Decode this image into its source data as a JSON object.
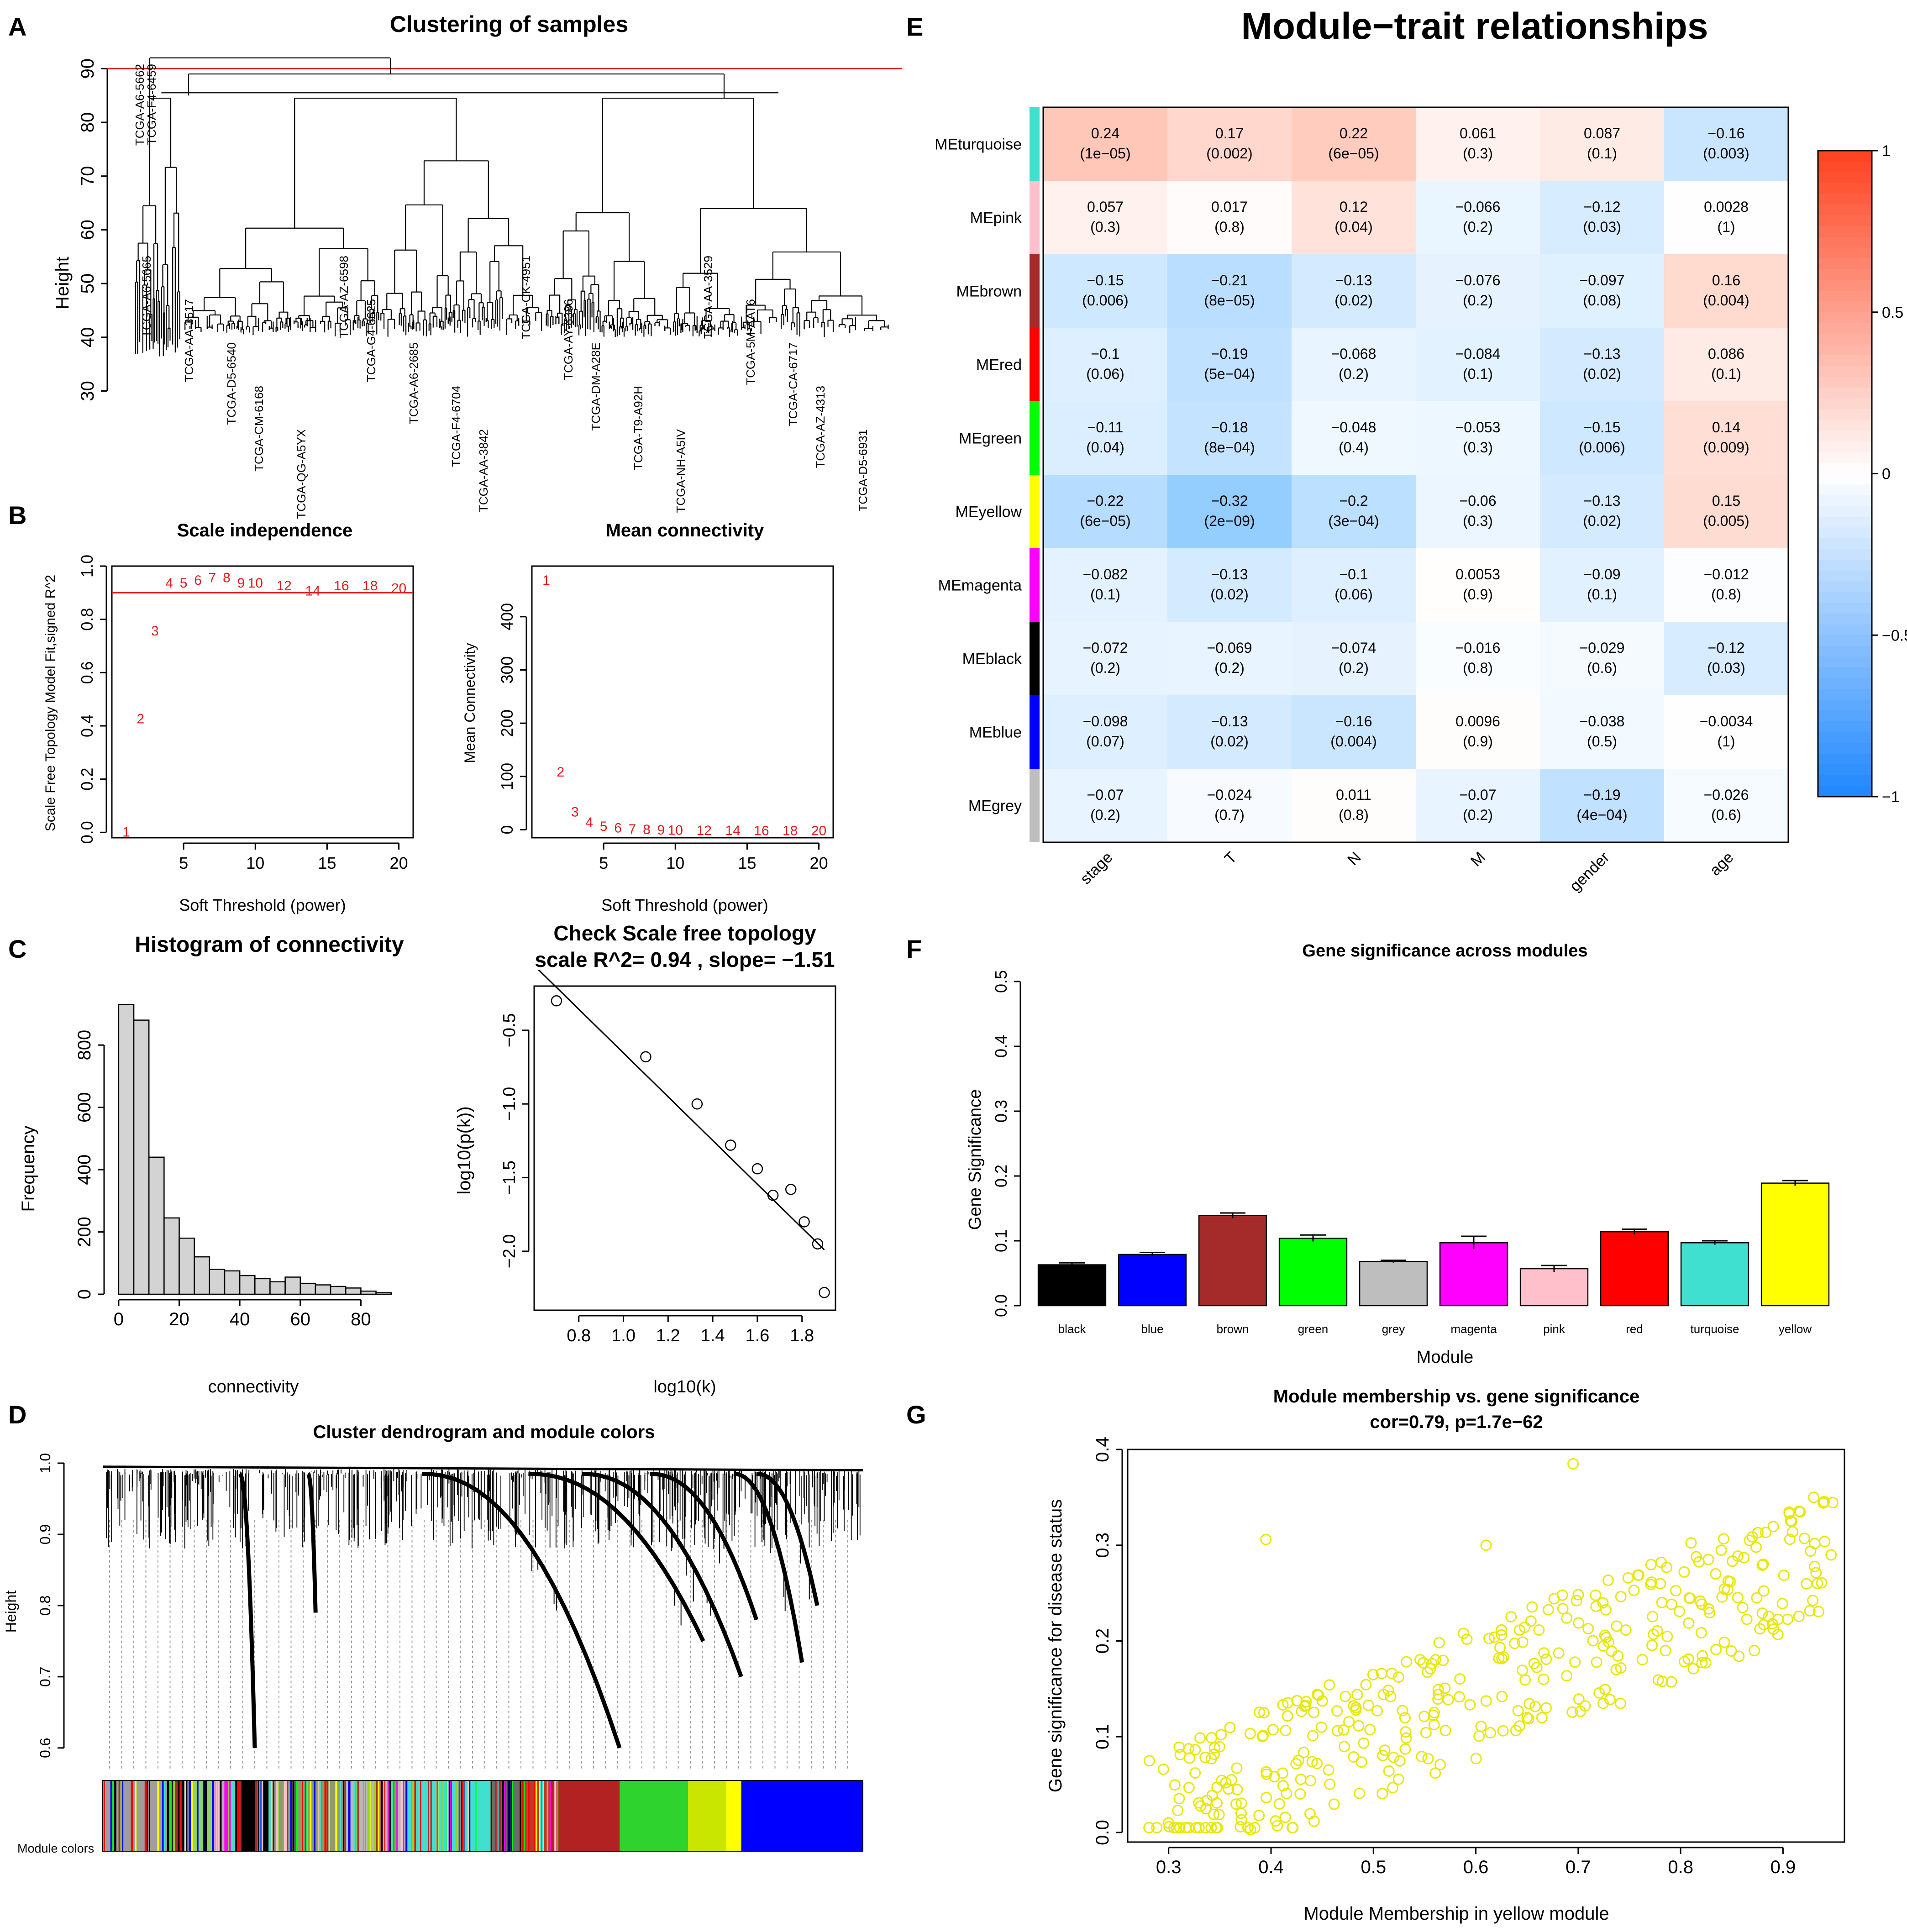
{
  "figure": {
    "panel_letters": [
      "A",
      "B",
      "C",
      "D",
      "E",
      "F",
      "G"
    ]
  },
  "chart_data": [
    {
      "panel": "A",
      "type": "dendrogram",
      "title": "Clustering of samples",
      "xlabel": "",
      "ylabel": "Height",
      "ylim": [
        28,
        93
      ],
      "yticks": [
        30,
        40,
        50,
        60,
        70,
        80,
        90
      ],
      "cut_height": 90,
      "cut_color": "#e41a1c",
      "sample_labels": [
        "TCGA-A6-5665",
        "TCGA-AA-3517",
        "TCGA-D5-6540",
        "TCGA-CM-6168",
        "TCGA-QG-A5YX",
        "TCGA-AZ-6598",
        "TCGA-G4-6625",
        "TCGA-A6-2685",
        "TCGA-F4-6704",
        "TCGA-AA-3842",
        "TCGA-CK-4951",
        "TCGA-AY-6386",
        "TCGA-DM-A28E",
        "TCGA-T9-A92H",
        "TCGA-NH-A5IV",
        "TCGA-AA-3529",
        "TCGA-5M-AAT6",
        "TCGA-CA-6717",
        "TCGA-AZ-4313",
        "TCGA-D5-6931"
      ],
      "outlier_labels": [
        "TCGA-A6-5662",
        "TCGA-F4-6459"
      ]
    },
    {
      "panel": "B1",
      "type": "scatter",
      "title": "Scale independence",
      "xlabel": "Soft Threshold (power)",
      "ylabel": "Scale Free Topology Model Fit,signed R^2",
      "xlim": [
        0,
        21
      ],
      "ylim": [
        -0.02,
        1.0
      ],
      "xticks": [
        5,
        10,
        15,
        20
      ],
      "yticks": [
        0.0,
        0.2,
        0.4,
        0.6,
        0.8,
        1.0
      ],
      "hline": 0.9,
      "labels": [
        "1",
        "2",
        "3",
        "4",
        "5",
        "6",
        "7",
        "8",
        "9",
        "10",
        "12",
        "14",
        "16",
        "18",
        "20"
      ],
      "x": [
        1,
        2,
        3,
        4,
        5,
        6,
        7,
        8,
        9,
        10,
        12,
        14,
        16,
        18,
        20
      ],
      "y": [
        0.005,
        0.43,
        0.76,
        0.94,
        0.94,
        0.95,
        0.96,
        0.96,
        0.94,
        0.94,
        0.93,
        0.91,
        0.93,
        0.93,
        0.92
      ]
    },
    {
      "panel": "B2",
      "type": "scatter",
      "title": "Mean connectivity",
      "xlabel": "Soft Threshold (power)",
      "ylabel": "Mean Connectivity",
      "xlim": [
        0,
        21
      ],
      "ylim": [
        -15,
        495
      ],
      "xticks": [
        5,
        10,
        15,
        20
      ],
      "yticks": [
        0,
        100,
        200,
        300,
        400
      ],
      "labels": [
        "1",
        "2",
        "3",
        "4",
        "5",
        "6",
        "7",
        "8",
        "9",
        "10",
        "12",
        "14",
        "16",
        "18",
        "20"
      ],
      "x": [
        1,
        2,
        3,
        4,
        5,
        6,
        7,
        8,
        9,
        10,
        12,
        14,
        16,
        18,
        20
      ],
      "y": [
        470,
        110,
        35,
        16,
        8,
        5,
        3,
        2,
        1.5,
        1,
        0.5,
        0.3,
        0.2,
        0.1,
        0.1
      ]
    },
    {
      "panel": "C1",
      "type": "histogram",
      "title": "Histogram of connectivity",
      "xlabel": "connectivity",
      "ylabel": "Frequency",
      "xlim": [
        -3,
        92
      ],
      "ylim": [
        0,
        960
      ],
      "xticks": [
        0,
        20,
        40,
        60,
        80
      ],
      "yticks": [
        0,
        200,
        400,
        600,
        800
      ],
      "bin_width": 5,
      "bin_start": 0,
      "values": [
        930,
        880,
        440,
        245,
        180,
        120,
        80,
        75,
        60,
        50,
        40,
        55,
        35,
        30,
        25,
        20,
        10,
        5
      ]
    },
    {
      "panel": "C2",
      "type": "scatter",
      "title": "Check Scale free topology",
      "subtitle": "scale R^2= 0.94 , slope= −1.51",
      "xlabel": "log10(k)",
      "ylabel": "log10(p(k))",
      "xlim": [
        0.6,
        1.95
      ],
      "ylim": [
        -2.4,
        -0.2
      ],
      "xticks": [
        0.8,
        1.0,
        1.2,
        1.4,
        1.6,
        1.8
      ],
      "yticks": [
        -2.0,
        -1.5,
        -1.0,
        -0.5
      ],
      "x": [
        0.7,
        1.1,
        1.33,
        1.48,
        1.6,
        1.67,
        1.75,
        1.81,
        1.87,
        1.9
      ],
      "y": [
        -0.3,
        -0.68,
        -1.0,
        -1.28,
        -1.44,
        -1.62,
        -1.58,
        -1.8,
        -1.95,
        -2.28
      ],
      "fit_line": {
        "x": [
          0.62,
          1.9
        ],
        "y": [
          -0.09,
          -1.99
        ]
      }
    },
    {
      "panel": "D",
      "type": "dendrogram",
      "title": "Cluster dendrogram and module colors",
      "xlabel": "",
      "ylabel": "Height",
      "ylim": [
        0.58,
        1.0
      ],
      "yticks": [
        0.6,
        0.7,
        0.8,
        0.9,
        1.0
      ],
      "color_bar_label": "Module colors",
      "color_blocks": [
        {
          "w": 0.12,
          "color": "#9e9e9e"
        },
        {
          "w": 0.025,
          "color": "#8fd16a"
        },
        {
          "w": 0.015,
          "color": "#c7a0c5"
        },
        {
          "w": 0.014,
          "color": "#ff00ff"
        },
        {
          "w": 0.046,
          "color": "#000000"
        },
        {
          "w": 0.1,
          "color": "#8f9b6f"
        },
        {
          "w": 0.08,
          "color": "#b8b8b8"
        },
        {
          "w": 0.11,
          "color": "#40e0d0"
        },
        {
          "w": 0.04,
          "color": "#6b6b6b"
        },
        {
          "w": 0.04,
          "color": "#c0392b"
        },
        {
          "w": 0.09,
          "color": "#b22222"
        },
        {
          "w": 0.09,
          "color": "#2ed32e"
        },
        {
          "w": 0.05,
          "color": "#c8e600"
        },
        {
          "w": 0.02,
          "color": "#ffff00"
        },
        {
          "w": 0.16,
          "color": "#0000ff"
        }
      ]
    },
    {
      "panel": "E",
      "type": "heatmap",
      "title": "Module−trait relationships",
      "columns": [
        "stage",
        "T",
        "N",
        "M",
        "gender",
        "age"
      ],
      "rows": [
        "MEturquoise",
        "MEpink",
        "MEbrown",
        "MEred",
        "MEgreen",
        "MEyellow",
        "MEmagenta",
        "MEblack",
        "MEblue",
        "MEgrey"
      ],
      "row_colors": [
        "#40e0d0",
        "#ffc0cb",
        "#a52a2a",
        "#ff0000",
        "#00ff00",
        "#ffff00",
        "#ff00ff",
        "#000000",
        "#0000ff",
        "#bebebe"
      ],
      "values": [
        [
          0.24,
          0.17,
          0.22,
          0.061,
          0.087,
          -0.16
        ],
        [
          0.057,
          0.017,
          0.12,
          -0.066,
          -0.12,
          0.0028
        ],
        [
          -0.15,
          -0.21,
          -0.13,
          -0.076,
          -0.097,
          0.16
        ],
        [
          -0.1,
          -0.19,
          -0.068,
          -0.084,
          -0.13,
          0.086
        ],
        [
          -0.11,
          -0.18,
          -0.048,
          -0.053,
          -0.15,
          0.14
        ],
        [
          -0.22,
          -0.32,
          -0.2,
          -0.06,
          -0.13,
          0.15
        ],
        [
          -0.082,
          -0.13,
          -0.1,
          0.0053,
          -0.09,
          -0.012
        ],
        [
          -0.072,
          -0.069,
          -0.074,
          -0.016,
          -0.029,
          -0.12
        ],
        [
          -0.098,
          -0.13,
          -0.16,
          0.0096,
          -0.038,
          -0.0034
        ],
        [
          -0.07,
          -0.024,
          0.011,
          -0.07,
          -0.19,
          -0.026
        ]
      ],
      "value_labels": [
        [
          "0.24",
          "0.17",
          "0.22",
          "0.061",
          "0.087",
          "−0.16"
        ],
        [
          "0.057",
          "0.017",
          "0.12",
          "−0.066",
          "−0.12",
          "0.0028"
        ],
        [
          "−0.15",
          "−0.21",
          "−0.13",
          "−0.076",
          "−0.097",
          "0.16"
        ],
        [
          "−0.1",
          "−0.19",
          "−0.068",
          "−0.084",
          "−0.13",
          "0.086"
        ],
        [
          "−0.11",
          "−0.18",
          "−0.048",
          "−0.053",
          "−0.15",
          "0.14"
        ],
        [
          "−0.22",
          "−0.32",
          "−0.2",
          "−0.06",
          "−0.13",
          "0.15"
        ],
        [
          "−0.082",
          "−0.13",
          "−0.1",
          "0.0053",
          "−0.09",
          "−0.012"
        ],
        [
          "−0.072",
          "−0.069",
          "−0.074",
          "−0.016",
          "−0.029",
          "−0.12"
        ],
        [
          "−0.098",
          "−0.13",
          "−0.16",
          "0.0096",
          "−0.038",
          "−0.0034"
        ],
        [
          "−0.07",
          "−0.024",
          "0.011",
          "−0.07",
          "−0.19",
          "−0.026"
        ]
      ],
      "pvalues": [
        [
          "(1e−05)",
          "(0.002)",
          "(6e−05)",
          "(0.3)",
          "(0.1)",
          "(0.003)"
        ],
        [
          "(0.3)",
          "(0.8)",
          "(0.04)",
          "(0.2)",
          "(0.03)",
          "(1)"
        ],
        [
          "(0.006)",
          "(8e−05)",
          "(0.02)",
          "(0.2)",
          "(0.08)",
          "(0.004)"
        ],
        [
          "(0.06)",
          "(5e−04)",
          "(0.2)",
          "(0.1)",
          "(0.02)",
          "(0.1)"
        ],
        [
          "(0.04)",
          "(8e−04)",
          "(0.4)",
          "(0.3)",
          "(0.006)",
          "(0.009)"
        ],
        [
          "(6e−05)",
          "(2e−09)",
          "(3e−04)",
          "(0.3)",
          "(0.02)",
          "(0.005)"
        ],
        [
          "(0.1)",
          "(0.02)",
          "(0.06)",
          "(0.9)",
          "(0.1)",
          "(0.8)"
        ],
        [
          "(0.2)",
          "(0.2)",
          "(0.2)",
          "(0.8)",
          "(0.6)",
          "(0.03)"
        ],
        [
          "(0.07)",
          "(0.02)",
          "(0.004)",
          "(0.9)",
          "(0.5)",
          "(1)"
        ],
        [
          "(0.2)",
          "(0.7)",
          "(0.8)",
          "(0.2)",
          "(4e−04)",
          "(0.6)"
        ]
      ],
      "colorbar": {
        "min": -1,
        "max": 1,
        "ticks": [
          1,
          0.5,
          0,
          -0.5,
          -1
        ],
        "tick_labels": [
          "1",
          "0.5",
          "0",
          "−0.5",
          "−1"
        ]
      }
    },
    {
      "panel": "F",
      "type": "bar",
      "title": "Gene significance across modules",
      "xlabel": "Module",
      "ylabel": "Gene Significance",
      "ylim": [
        0,
        0.5
      ],
      "yticks": [
        0.0,
        0.1,
        0.2,
        0.3,
        0.4,
        0.5
      ],
      "categories": [
        "black",
        "blue",
        "brown",
        "green",
        "grey",
        "magenta",
        "pink",
        "red",
        "turquoise",
        "yellow"
      ],
      "values": [
        0.063,
        0.079,
        0.139,
        0.104,
        0.068,
        0.097,
        0.057,
        0.114,
        0.097,
        0.189
      ],
      "errors": [
        0.003,
        0.003,
        0.004,
        0.005,
        0.002,
        0.01,
        0.005,
        0.004,
        0.003,
        0.004
      ],
      "colors": [
        "#000000",
        "#0000ff",
        "#a52a2a",
        "#00ff00",
        "#bebebe",
        "#ff00ff",
        "#ffc0cb",
        "#ff0000",
        "#40e0d0",
        "#ffff00"
      ]
    },
    {
      "panel": "G",
      "type": "scatter",
      "title": "Module membership vs. gene significance",
      "subtitle": "cor=0.79, p=1.7e−62",
      "xlabel": "Module Membership in yellow module",
      "ylabel": "Gene significance for disease status",
      "xlim": [
        0.26,
        0.96
      ],
      "ylim": [
        -0.01,
        0.4
      ],
      "xticks": [
        0.3,
        0.4,
        0.5,
        0.6,
        0.7,
        0.8,
        0.9
      ],
      "yticks": [
        0.0,
        0.1,
        0.2,
        0.3,
        0.4
      ],
      "point_color": "#e8e800",
      "n_points": 360,
      "correlation": 0.79,
      "outliers": [
        [
          0.695,
          0.385
        ],
        [
          0.395,
          0.306
        ],
        [
          0.61,
          0.3
        ],
        [
          0.93,
          0.35
        ],
        [
          0.3,
          0.01
        ],
        [
          0.37,
          0.006
        ],
        [
          0.38,
          0.003
        ]
      ]
    }
  ]
}
